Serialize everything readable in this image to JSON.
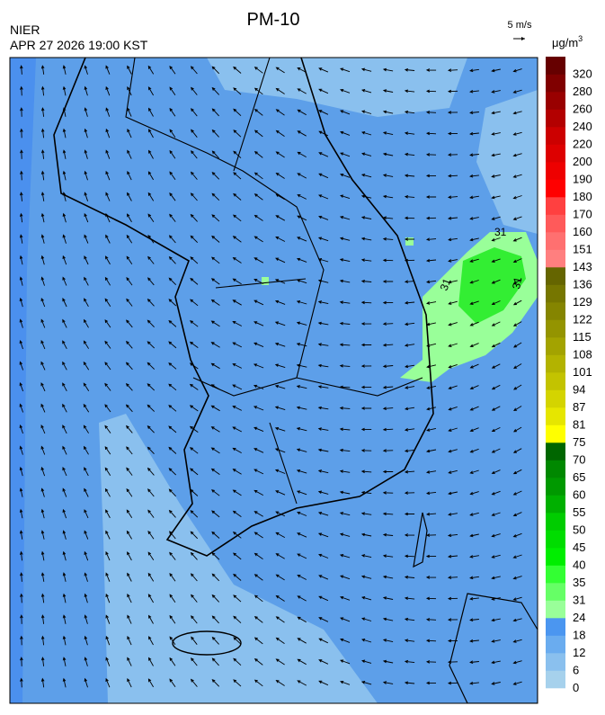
{
  "header": {
    "title": "PM-10",
    "agency": "NIER",
    "timestamp": "APR 27 2026 19:00 KST",
    "wind_scale": "5 m/s",
    "unit": "μg/m",
    "unit_superscript": "3"
  },
  "contour_labels": [
    "31",
    "31",
    "31"
  ],
  "legend": {
    "colors": [
      "#a6d1ec",
      "#8ac0ee",
      "#6aacef",
      "#4b96f0",
      "#99ff99",
      "#66ff66",
      "#33ff33",
      "#00ee00",
      "#00dd00",
      "#00cc00",
      "#00b000",
      "#009900",
      "#008800",
      "#006600",
      "#ffff00",
      "#e6e600",
      "#d4d400",
      "#c3c300",
      "#b3b300",
      "#a3a300",
      "#949400",
      "#858500",
      "#767600",
      "#656500",
      "#ff7f7f",
      "#ff7070",
      "#ff5a5a",
      "#ff4040",
      "#ff0000",
      "#ee0000",
      "#dd0000",
      "#cc0000",
      "#b30000",
      "#990000",
      "#800000",
      "#660000"
    ],
    "labels": [
      0,
      6,
      12,
      18,
      24,
      31,
      35,
      40,
      45,
      50,
      55,
      60,
      65,
      70,
      75,
      81,
      87,
      94,
      101,
      108,
      115,
      122,
      129,
      136,
      143,
      151,
      160,
      170,
      180,
      190,
      200,
      220,
      240,
      260,
      280,
      320
    ]
  }
}
